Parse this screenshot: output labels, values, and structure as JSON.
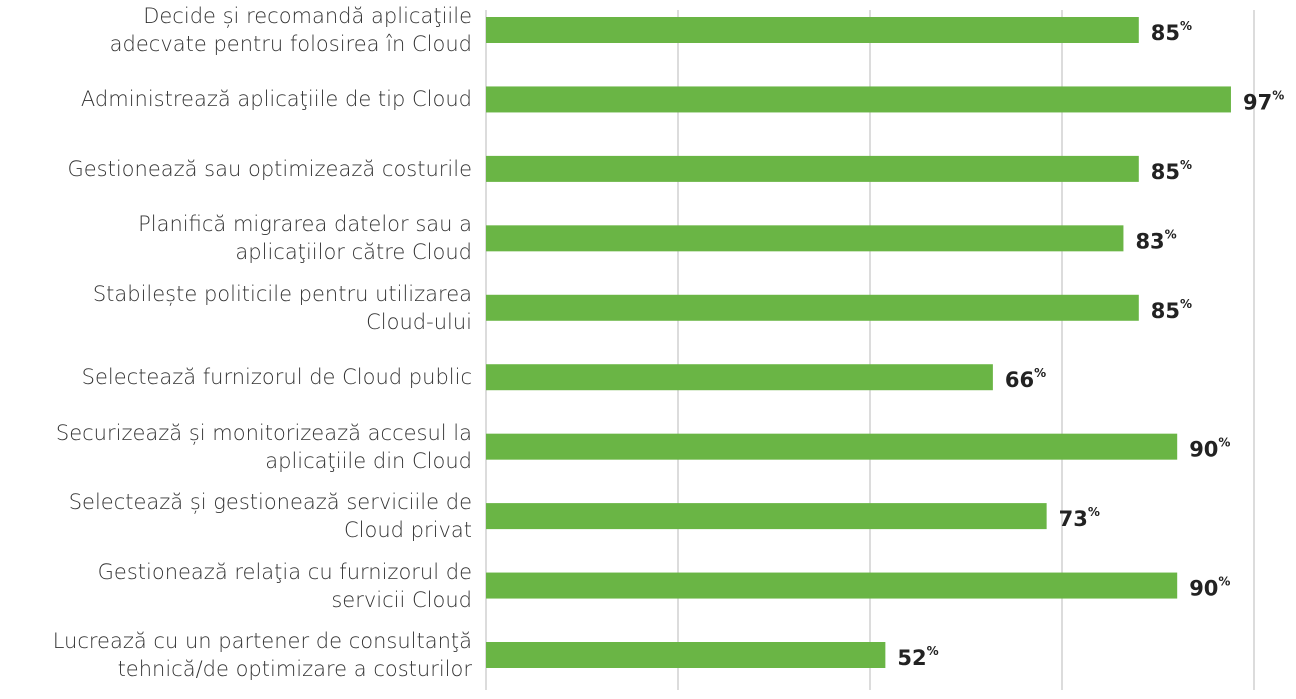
{
  "chart_data": {
    "type": "barh",
    "categories": [
      "Decide și recomandă aplicaţiile\nadecvate pentru folosirea în Cloud",
      "Administrează aplicaţiile de tip Cloud",
      "Gestionează sau optimizează costurile",
      "Planifică migrarea datelor sau a\naplicaţiilor către Cloud",
      "Stabilește politicile pentru utilizarea\nCloud-ului",
      "Selectează furnizorul de Cloud public",
      "Securizează și monitorizează accesul la\naplicaţiile din Cloud",
      "Selectează și gestionează serviciile de\nCloud privat",
      "Gestionează relaţia cu furnizorul de\nservicii Cloud",
      "Lucrează cu un partener de consultanţă\ntehnică/de optimizare a costurilor"
    ],
    "values": [
      85,
      97,
      85,
      83,
      85,
      66,
      90,
      73,
      90,
      52
    ],
    "value_labels": [
      "85%",
      "97%",
      "85%",
      "83%",
      "85%",
      "66%",
      "90%",
      "73%",
      "90%",
      "52%"
    ],
    "color": "#6ab545",
    "xlim": [
      0,
      100
    ],
    "xticks": [
      0,
      25,
      50,
      75,
      100
    ],
    "grid": true
  }
}
